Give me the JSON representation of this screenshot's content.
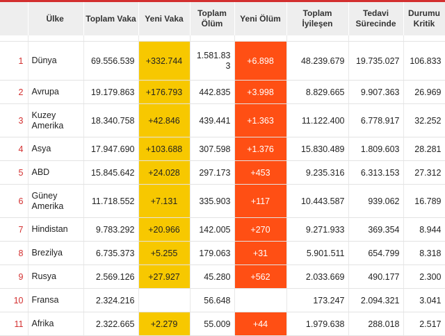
{
  "headers": {
    "country": "Ülke",
    "total_cases": "Toplam Vaka",
    "new_cases": "Yeni Vaka",
    "total_deaths": "Toplam Ölüm",
    "new_deaths": "Yeni Ölüm",
    "recovered": "Toplam İyileşen",
    "active": "Tedavi Sürecinde",
    "critical": "Durumu Kritik"
  },
  "rows": [
    {
      "rank": "1",
      "country": "Dünya",
      "total_cases": "69.556.539",
      "new_cases": "+332.744",
      "total_deaths": "1.581.833",
      "new_deaths": "+6.898",
      "recovered": "48.239.679",
      "active": "19.735.027",
      "critical": "106.833"
    },
    {
      "rank": "2",
      "country": "Avrupa",
      "total_cases": "19.179.863",
      "new_cases": "+176.793",
      "total_deaths": "442.835",
      "new_deaths": "+3.998",
      "recovered": "8.829.665",
      "active": "9.907.363",
      "critical": "26.969"
    },
    {
      "rank": "3",
      "country": "Kuzey Amerika",
      "total_cases": "18.340.758",
      "new_cases": "+42.846",
      "total_deaths": "439.441",
      "new_deaths": "+1.363",
      "recovered": "11.122.400",
      "active": "6.778.917",
      "critical": "32.252"
    },
    {
      "rank": "4",
      "country": "Asya",
      "total_cases": "17.947.690",
      "new_cases": "+103.688",
      "total_deaths": "307.598",
      "new_deaths": "+1.376",
      "recovered": "15.830.489",
      "active": "1.809.603",
      "critical": "28.281"
    },
    {
      "rank": "5",
      "country": "ABD",
      "total_cases": "15.845.642",
      "new_cases": "+24.028",
      "total_deaths": "297.173",
      "new_deaths": "+453",
      "recovered": "9.235.316",
      "active": "6.313.153",
      "critical": "27.312"
    },
    {
      "rank": "6",
      "country": "Güney Amerika",
      "total_cases": "11.718.552",
      "new_cases": "+7.131",
      "total_deaths": "335.903",
      "new_deaths": "+117",
      "recovered": "10.443.587",
      "active": "939.062",
      "critical": "16.789"
    },
    {
      "rank": "7",
      "country": "Hindistan",
      "total_cases": "9.783.292",
      "new_cases": "+20.966",
      "total_deaths": "142.005",
      "new_deaths": "+270",
      "recovered": "9.271.933",
      "active": "369.354",
      "critical": "8.944"
    },
    {
      "rank": "8",
      "country": "Brezilya",
      "total_cases": "6.735.373",
      "new_cases": "+5.255",
      "total_deaths": "179.063",
      "new_deaths": "+31",
      "recovered": "5.901.511",
      "active": "654.799",
      "critical": "8.318"
    },
    {
      "rank": "9",
      "country": "Rusya",
      "total_cases": "2.569.126",
      "new_cases": "+27.927",
      "total_deaths": "45.280",
      "new_deaths": "+562",
      "recovered": "2.033.669",
      "active": "490.177",
      "critical": "2.300"
    },
    {
      "rank": "10",
      "country": "Fransa",
      "total_cases": "2.324.216",
      "new_cases": "",
      "total_deaths": "56.648",
      "new_deaths": "",
      "recovered": "173.247",
      "active": "2.094.321",
      "critical": "3.041"
    },
    {
      "rank": "11",
      "country": "Afrika",
      "total_cases": "2.322.665",
      "new_cases": "+2.279",
      "total_deaths": "55.009",
      "new_deaths": "+44",
      "recovered": "1.979.638",
      "active": "288.018",
      "critical": "2.517"
    }
  ],
  "colors": {
    "accent": "#d32f2f",
    "new_cases_bg": "#f7c800",
    "new_deaths_bg": "#ff4f14",
    "header_bg": "#eeeeee"
  }
}
